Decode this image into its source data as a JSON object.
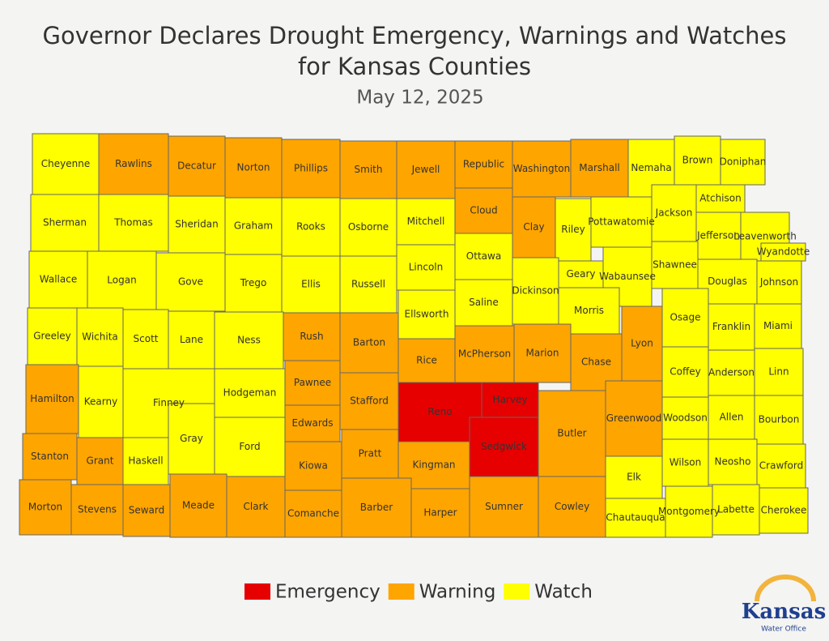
{
  "title": "Governor Declares Drought Emergency, Warnings and Watches",
  "title_line2": "for Kansas Counties",
  "date": "May 12, 2025",
  "legend": [
    {
      "name": "Emergency",
      "color": "#e60000"
    },
    {
      "name": "Warning",
      "color": "#ffa500"
    },
    {
      "name": "Watch",
      "color": "#ffff00"
    }
  ],
  "logo": {
    "name": "Kansas",
    "subtitle": "Water Office"
  },
  "counties": [
    {
      "name": "Cheyenne",
      "status": "Watch"
    },
    {
      "name": "Rawlins",
      "status": "Warning"
    },
    {
      "name": "Decatur",
      "status": "Warning"
    },
    {
      "name": "Norton",
      "status": "Warning"
    },
    {
      "name": "Phillips",
      "status": "Warning"
    },
    {
      "name": "Smith",
      "status": "Warning"
    },
    {
      "name": "Jewell",
      "status": "Warning"
    },
    {
      "name": "Republic",
      "status": "Warning"
    },
    {
      "name": "Washington",
      "status": "Warning"
    },
    {
      "name": "Marshall",
      "status": "Warning"
    },
    {
      "name": "Nemaha",
      "status": "Watch"
    },
    {
      "name": "Brown",
      "status": "Watch"
    },
    {
      "name": "Doniphan",
      "status": "Watch"
    },
    {
      "name": "Sherman",
      "status": "Watch"
    },
    {
      "name": "Thomas",
      "status": "Watch"
    },
    {
      "name": "Sheridan",
      "status": "Watch"
    },
    {
      "name": "Graham",
      "status": "Watch"
    },
    {
      "name": "Rooks",
      "status": "Watch"
    },
    {
      "name": "Osborne",
      "status": "Watch"
    },
    {
      "name": "Mitchell",
      "status": "Watch"
    },
    {
      "name": "Cloud",
      "status": "Warning"
    },
    {
      "name": "Clay",
      "status": "Warning"
    },
    {
      "name": "Riley",
      "status": "Watch"
    },
    {
      "name": "Pottawatomie",
      "status": "Watch"
    },
    {
      "name": "Jackson",
      "status": "Watch"
    },
    {
      "name": "Atchison",
      "status": "Watch"
    },
    {
      "name": "Jefferson",
      "status": "Watch"
    },
    {
      "name": "Leavenworth",
      "status": "Watch"
    },
    {
      "name": "Wyandotte",
      "status": "Watch"
    },
    {
      "name": "Wallace",
      "status": "Watch"
    },
    {
      "name": "Logan",
      "status": "Watch"
    },
    {
      "name": "Gove",
      "status": "Watch"
    },
    {
      "name": "Trego",
      "status": "Watch"
    },
    {
      "name": "Ellis",
      "status": "Watch"
    },
    {
      "name": "Russell",
      "status": "Watch"
    },
    {
      "name": "Lincoln",
      "status": "Watch"
    },
    {
      "name": "Ottawa",
      "status": "Watch"
    },
    {
      "name": "Dickinson",
      "status": "Watch"
    },
    {
      "name": "Geary",
      "status": "Watch"
    },
    {
      "name": "Wabaunsee",
      "status": "Watch"
    },
    {
      "name": "Shawnee",
      "status": "Watch"
    },
    {
      "name": "Douglas",
      "status": "Watch"
    },
    {
      "name": "Johnson",
      "status": "Watch"
    },
    {
      "name": "Greeley",
      "status": "Watch"
    },
    {
      "name": "Wichita",
      "status": "Watch"
    },
    {
      "name": "Scott",
      "status": "Watch"
    },
    {
      "name": "Lane",
      "status": "Watch"
    },
    {
      "name": "Ness",
      "status": "Watch"
    },
    {
      "name": "Rush",
      "status": "Warning"
    },
    {
      "name": "Barton",
      "status": "Warning"
    },
    {
      "name": "Ellsworth",
      "status": "Watch"
    },
    {
      "name": "Saline",
      "status": "Watch"
    },
    {
      "name": "Morris",
      "status": "Watch"
    },
    {
      "name": "Osage",
      "status": "Watch"
    },
    {
      "name": "Franklin",
      "status": "Watch"
    },
    {
      "name": "Miami",
      "status": "Watch"
    },
    {
      "name": "Rice",
      "status": "Warning"
    },
    {
      "name": "McPherson",
      "status": "Warning"
    },
    {
      "name": "Marion",
      "status": "Warning"
    },
    {
      "name": "Chase",
      "status": "Warning"
    },
    {
      "name": "Lyon",
      "status": "Warning"
    },
    {
      "name": "Hamilton",
      "status": "Warning"
    },
    {
      "name": "Kearny",
      "status": "Watch"
    },
    {
      "name": "Finney",
      "status": "Watch"
    },
    {
      "name": "Hodgeman",
      "status": "Watch"
    },
    {
      "name": "Pawnee",
      "status": "Warning"
    },
    {
      "name": "Stafford",
      "status": "Warning"
    },
    {
      "name": "Edwards",
      "status": "Warning"
    },
    {
      "name": "Reno",
      "status": "Emergency"
    },
    {
      "name": "Harvey",
      "status": "Emergency"
    },
    {
      "name": "Sedgwick",
      "status": "Emergency"
    },
    {
      "name": "Butler",
      "status": "Warning"
    },
    {
      "name": "Greenwood",
      "status": "Warning"
    },
    {
      "name": "Coffey",
      "status": "Watch"
    },
    {
      "name": "Anderson",
      "status": "Watch"
    },
    {
      "name": "Linn",
      "status": "Watch"
    },
    {
      "name": "Woodson",
      "status": "Watch"
    },
    {
      "name": "Allen",
      "status": "Watch"
    },
    {
      "name": "Bourbon",
      "status": "Watch"
    },
    {
      "name": "Gray",
      "status": "Watch"
    },
    {
      "name": "Ford",
      "status": "Watch"
    },
    {
      "name": "Stanton",
      "status": "Warning"
    },
    {
      "name": "Grant",
      "status": "Warning"
    },
    {
      "name": "Haskell",
      "status": "Watch"
    },
    {
      "name": "Kiowa",
      "status": "Warning"
    },
    {
      "name": "Pratt",
      "status": "Warning"
    },
    {
      "name": "Kingman",
      "status": "Warning"
    },
    {
      "name": "Elk",
      "status": "Watch"
    },
    {
      "name": "Wilson",
      "status": "Watch"
    },
    {
      "name": "Neosho",
      "status": "Watch"
    },
    {
      "name": "Crawford",
      "status": "Watch"
    },
    {
      "name": "Morton",
      "status": "Warning"
    },
    {
      "name": "Stevens",
      "status": "Warning"
    },
    {
      "name": "Seward",
      "status": "Warning"
    },
    {
      "name": "Meade",
      "status": "Warning"
    },
    {
      "name": "Clark",
      "status": "Warning"
    },
    {
      "name": "Comanche",
      "status": "Warning"
    },
    {
      "name": "Barber",
      "status": "Warning"
    },
    {
      "name": "Harper",
      "status": "Warning"
    },
    {
      "name": "Sumner",
      "status": "Warning"
    },
    {
      "name": "Cowley",
      "status": "Warning"
    },
    {
      "name": "Chautauqua",
      "status": "Watch"
    },
    {
      "name": "Montgomery",
      "status": "Watch"
    },
    {
      "name": "Labette",
      "status": "Watch"
    },
    {
      "name": "Cherokee",
      "status": "Watch"
    }
  ]
}
